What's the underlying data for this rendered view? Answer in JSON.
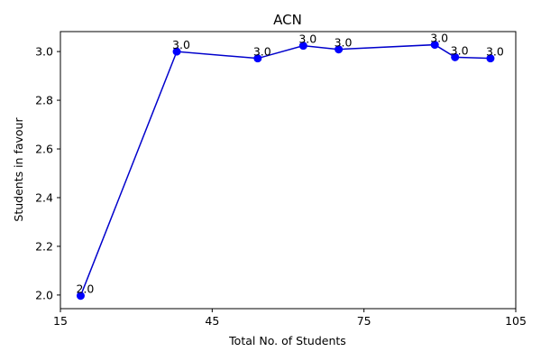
{
  "chart_data": {
    "type": "line",
    "title": "ACN",
    "xlabel": "Total No. of Students",
    "ylabel": "Students in favour",
    "xlim": [
      15,
      105
    ],
    "ylim": [
      1.944,
      3.082
    ],
    "xticks": [
      15,
      45,
      75,
      105
    ],
    "yticks": [
      2.0,
      2.2,
      2.4,
      2.6,
      2.8,
      3.0
    ],
    "ytick_labels": [
      "2.0",
      "2.2",
      "2.4",
      "2.6",
      "2.8",
      "3.0"
    ],
    "grid": false,
    "legend": "none",
    "line_color": "#0000cc",
    "marker_color": "#0000ff",
    "series": [
      {
        "x": [
          19,
          38,
          54,
          63,
          70,
          89,
          93,
          100
        ],
        "y": [
          1.997,
          3.0,
          2.972,
          3.024,
          3.009,
          3.028,
          2.977,
          2.972
        ],
        "labels": [
          "2.0",
          "3.0",
          "3.0",
          "3.0",
          "3.0",
          "3.0",
          "3.0",
          "3.0"
        ]
      }
    ]
  }
}
